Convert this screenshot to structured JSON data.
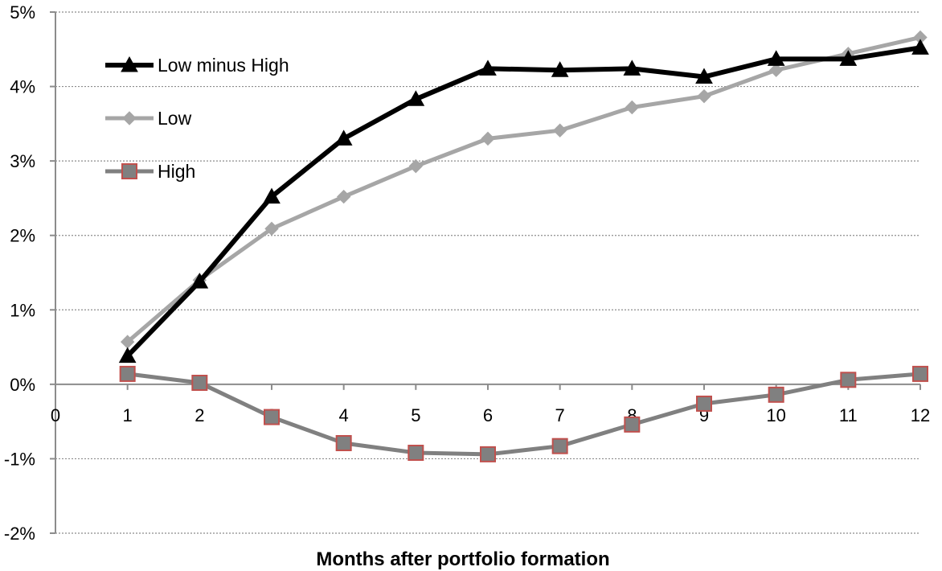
{
  "chart_data": {
    "type": "line",
    "title": "",
    "xlabel": "Months after portfolio formation",
    "ylabel": "",
    "x": [
      1,
      2,
      3,
      4,
      5,
      6,
      7,
      8,
      9,
      10,
      11,
      12
    ],
    "xlim": [
      0,
      12
    ],
    "ylim": [
      -2,
      5
    ],
    "x_ticks": [
      "0",
      "1",
      "2",
      "3",
      "4",
      "5",
      "6",
      "7",
      "8",
      "9",
      "10",
      "11",
      "12"
    ],
    "y_ticks": [
      "5%",
      "4%",
      "3%",
      "2%",
      "1%",
      "0%",
      "-1%",
      "-2%"
    ],
    "y_tick_values": [
      5,
      4,
      3,
      2,
      1,
      0,
      -1,
      -2
    ],
    "grid": true,
    "legend_position": "top-left",
    "series": [
      {
        "name": "Low minus High",
        "color": "#000000",
        "marker": "triangle",
        "values": [
          0.38,
          1.38,
          2.52,
          3.3,
          3.83,
          4.24,
          4.22,
          4.24,
          4.13,
          4.37,
          4.37,
          4.52
        ]
      },
      {
        "name": "Low",
        "color": "#a6a6a6",
        "marker": "diamond",
        "values": [
          0.57,
          1.4,
          2.09,
          2.52,
          2.93,
          3.3,
          3.41,
          3.72,
          3.87,
          4.22,
          4.44,
          4.66
        ]
      },
      {
        "name": "High",
        "color": "#808080",
        "marker_edge": "#c0504d",
        "marker": "square",
        "values": [
          0.14,
          0.02,
          -0.44,
          -0.79,
          -0.92,
          -0.94,
          -0.83,
          -0.54,
          -0.26,
          -0.14,
          0.06,
          0.14
        ]
      }
    ]
  }
}
